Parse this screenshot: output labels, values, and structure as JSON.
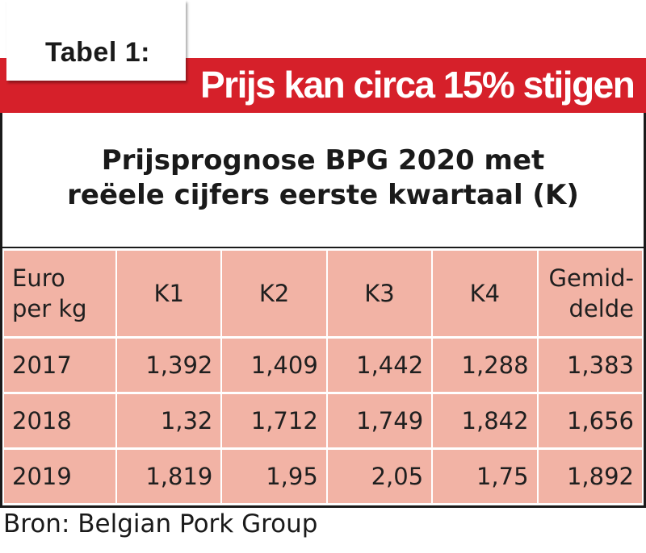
{
  "label": "Tabel 1:",
  "headline": "Prijs kan circa 15% stijgen",
  "subtitle": {
    "line1": "Prijsprognose BPG 2020 met",
    "line2": "reëele cijfers eerste kwartaal (K)"
  },
  "table": {
    "header": {
      "unit_line1": "Euro",
      "unit_line2": "per kg",
      "cols": [
        "K1",
        "K2",
        "K3",
        "K4"
      ],
      "avg_line1": "Gemid-",
      "avg_line2": "delde"
    },
    "rows": [
      {
        "year": "2017",
        "values": [
          "1,392",
          "1,409",
          "1,442",
          "1,288",
          "1,383"
        ]
      },
      {
        "year": "2018",
        "values": [
          "1,32",
          "1,712",
          "1,749",
          "1,842",
          "1,656"
        ]
      },
      {
        "year": "2019",
        "values": [
          "1,819",
          "1,95",
          "2,05",
          "1,75",
          "1,892"
        ]
      }
    ]
  },
  "source": "Bron: Belgian Pork Group",
  "colors": {
    "band": "#d6202a",
    "cell": "#f2b3a5"
  }
}
